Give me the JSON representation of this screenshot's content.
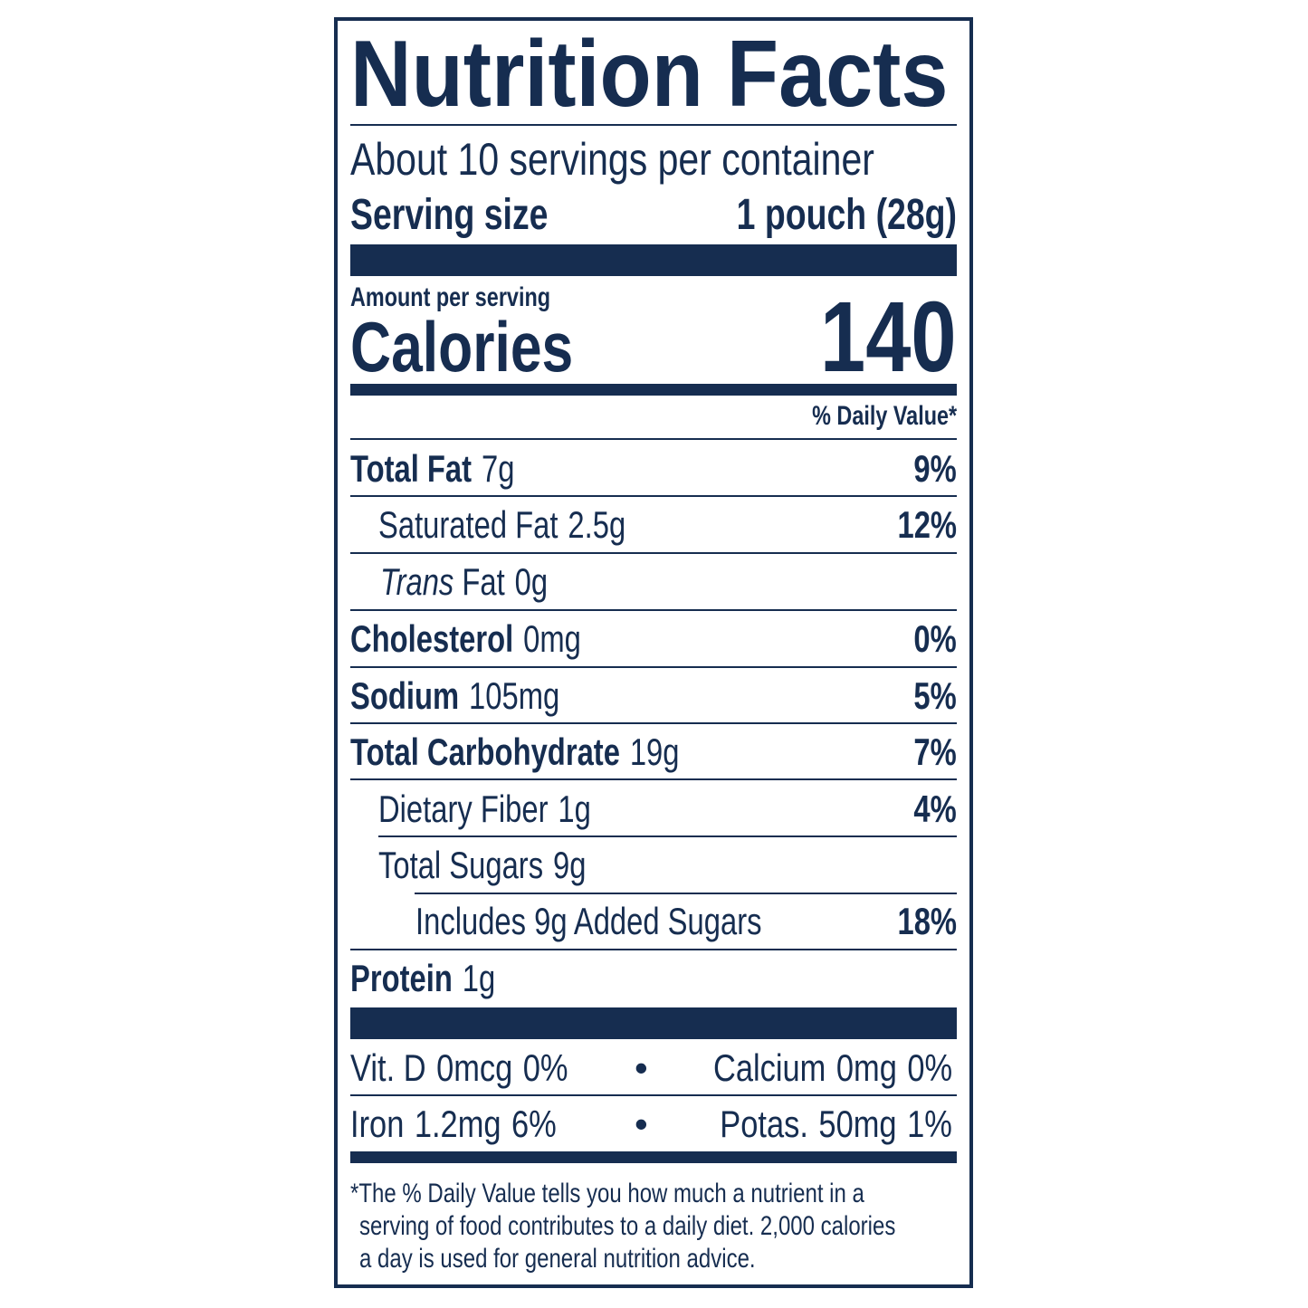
{
  "title": "Nutrition Facts",
  "servings_per_container": "About 10 servings per container",
  "serving_size_label": "Serving size",
  "serving_size_value": "1 pouch (28g)",
  "amount_per_serving": "Amount per serving",
  "calories_label": "Calories",
  "calories_value": "140",
  "daily_value_header": "% Daily Value*",
  "nutrients": [
    {
      "name": "Total Fat",
      "amount": "7g",
      "dv": "9%"
    },
    {
      "name": "Saturated Fat",
      "amount": "2.5g",
      "dv": "12%"
    },
    {
      "name_italic": "Trans",
      "name": "Fat",
      "amount": "0g",
      "dv": ""
    },
    {
      "name": "Cholesterol",
      "amount": "0mg",
      "dv": "0%"
    },
    {
      "name": "Sodium",
      "amount": "105mg",
      "dv": "5%"
    },
    {
      "name": "Total Carbohydrate",
      "amount": "19g",
      "dv": "7%"
    },
    {
      "name": "Dietary Fiber",
      "amount": "1g",
      "dv": "4%"
    },
    {
      "name": "Total Sugars",
      "amount": "9g",
      "dv": ""
    },
    {
      "name": "Includes 9g Added Sugars",
      "amount": "",
      "dv": "18%"
    },
    {
      "name": "Protein",
      "amount": "1g",
      "dv": ""
    }
  ],
  "vitamins": [
    {
      "name": "Vit. D",
      "amount": "0mcg",
      "dv": "0%"
    },
    {
      "name": "Calcium",
      "amount": "0mg",
      "dv": "0%"
    },
    {
      "name": "Iron",
      "amount": "1.2mg",
      "dv": "6%"
    },
    {
      "name": "Potas.",
      "amount": "50mg",
      "dv": "1%"
    }
  ],
  "bullet": "•",
  "footnote": [
    "*The % Daily Value tells you how much a nutrient in a",
    "serving of food contributes to a daily diet. 2,000 calories",
    "a day is used for general nutrition advice."
  ],
  "colors": {
    "ink": "#162d50",
    "background": "#ffffff"
  }
}
